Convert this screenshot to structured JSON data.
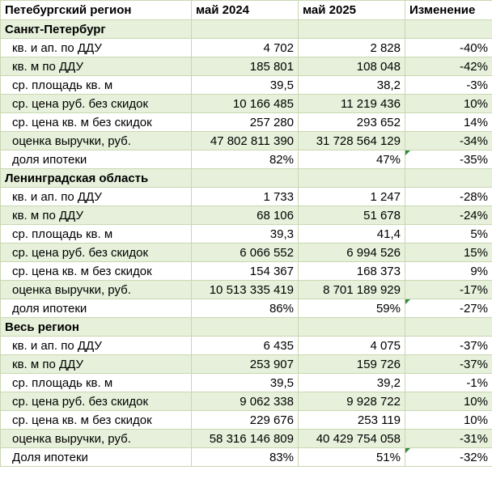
{
  "header": {
    "region": "Петебургский регион",
    "col1": "май 2024",
    "col2": "май 2025",
    "col3": "Изменение"
  },
  "sections": [
    {
      "title": "Санкт-Петербург",
      "rows": [
        {
          "label": "кв. и ап. по ДДУ",
          "v2024": "4 702",
          "v2025": "2 828",
          "change": "-40%"
        },
        {
          "label": "кв. м по ДДУ",
          "v2024": "185 801",
          "v2025": "108 048",
          "change": "-42%"
        },
        {
          "label": "ср. площадь кв. м",
          "v2024": "39,5",
          "v2025": "38,2",
          "change": "-3%"
        },
        {
          "label": "ср. цена руб. без скидок",
          "v2024": "10 166 485",
          "v2025": "11 219 436",
          "change": "10%"
        },
        {
          "label": "ср. цена кв. м без скидок",
          "v2024": "257 280",
          "v2025": "293 652",
          "change": "14%"
        },
        {
          "label": "оценка выручки, руб.",
          "v2024": "47 802 811 390",
          "v2025": "31 728 564 129",
          "change": "-34%"
        },
        {
          "label": "доля ипотеки",
          "v2024": "82%",
          "v2025": "47%",
          "change": "-35%"
        }
      ]
    },
    {
      "title": "Ленинградская область",
      "rows": [
        {
          "label": "кв. и ап. по ДДУ",
          "v2024": "1 733",
          "v2025": "1 247",
          "change": "-28%"
        },
        {
          "label": "кв. м по ДДУ",
          "v2024": "68 106",
          "v2025": "51 678",
          "change": "-24%"
        },
        {
          "label": "ср. площадь кв. м",
          "v2024": "39,3",
          "v2025": "41,4",
          "change": "5%"
        },
        {
          "label": "ср. цена руб. без скидок",
          "v2024": "6 066 552",
          "v2025": "6 994 526",
          "change": "15%"
        },
        {
          "label": "ср. цена кв. м без скидок",
          "v2024": "154 367",
          "v2025": "168 373",
          "change": "9%"
        },
        {
          "label": "оценка выручки, руб.",
          "v2024": "10 513 335 419",
          "v2025": "8 701 189 929",
          "change": "-17%"
        },
        {
          "label": "доля ипотеки",
          "v2024": "86%",
          "v2025": "59%",
          "change": "-27%"
        }
      ]
    },
    {
      "title": "Весь регион",
      "rows": [
        {
          "label": "кв. и ап. по ДДУ",
          "v2024": "6 435",
          "v2025": "4 075",
          "change": "-37%"
        },
        {
          "label": "кв. м по ДДУ",
          "v2024": "253 907",
          "v2025": "159 726",
          "change": "-37%"
        },
        {
          "label": "ср. площадь кв. м",
          "v2024": "39,5",
          "v2025": "39,2",
          "change": "-1%"
        },
        {
          "label": "ср. цена руб. без скидок",
          "v2024": "9 062 338",
          "v2025": "9 928 722",
          "change": "10%"
        },
        {
          "label": "ср. цена кв. м без скидок",
          "v2024": "229 676",
          "v2025": "253 119",
          "change": "10%"
        },
        {
          "label": "оценка выручки, руб.",
          "v2024": "58 316 146 809",
          "v2025": "40 429 754 058",
          "change": "-31%"
        },
        {
          "label": "Доля ипотеки",
          "v2024": "83%",
          "v2025": "51%",
          "change": "-32%"
        }
      ]
    }
  ],
  "colors": {
    "band": "#e6f0da",
    "grid": "#c9d7b2",
    "flag": "#2e8b3a"
  }
}
